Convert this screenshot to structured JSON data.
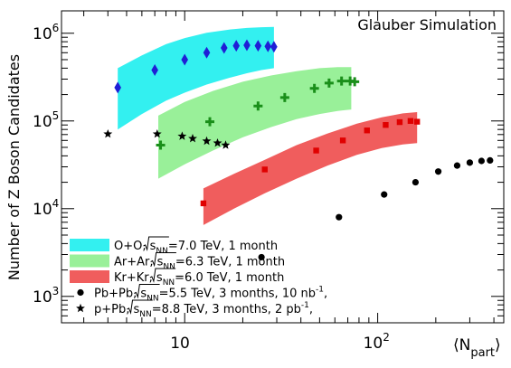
{
  "chart_data": {
    "type": "scatter",
    "title": "Glauber Simulation",
    "xlabel": "⟨N",
    "xlabel_sub": "part",
    "xlabel_close": "⟩",
    "ylabel": "Number of Z Boson Candidates",
    "x_scale": "log",
    "y_scale": "log",
    "xlim": [
      2.3,
      450
    ],
    "ylim": [
      500,
      1800000
    ],
    "x_ticks": [
      {
        "value": 10,
        "base": "10",
        "exp": ""
      },
      {
        "value": 100,
        "base": "10",
        "exp": "2"
      }
    ],
    "y_ticks": [
      {
        "value": 1000,
        "base": "10",
        "exp": "3"
      },
      {
        "value": 10000,
        "base": "10",
        "exp": "4"
      },
      {
        "value": 100000,
        "base": "10",
        "exp": "5"
      },
      {
        "value": 1000000,
        "base": "10",
        "exp": "6"
      }
    ],
    "grid": false,
    "legend_position": "bottom-left",
    "bands": [
      {
        "name": "O+O",
        "color": "#33f0f0",
        "legend": {
          "pre": "O+O,  ",
          "root_s": "s",
          "sub": "NN",
          "post": "=7.0 TeV,  1 month"
        },
        "x": [
          4.5,
          6,
          8,
          10,
          13,
          17,
          21,
          25,
          29
        ],
        "upper": [
          400000,
          560000,
          750000,
          880000,
          1010000,
          1100000,
          1150000,
          1170000,
          1180000
        ],
        "lower": [
          80000,
          120000,
          170000,
          210000,
          260000,
          310000,
          350000,
          380000,
          400000
        ]
      },
      {
        "name": "Ar+Ar",
        "color": "#99f099",
        "legend": {
          "pre": "Ar+Ar,  ",
          "root_s": "s",
          "sub": "NN",
          "post": "=6.3 TeV,  1 month"
        },
        "x": [
          7.3,
          10,
          14,
          20,
          28,
          38,
          50,
          62,
          73
        ],
        "upper": [
          115000,
          165000,
          220000,
          280000,
          330000,
          370000,
          400000,
          410000,
          410000
        ],
        "lower": [
          22000,
          32000,
          46000,
          65000,
          85000,
          105000,
          120000,
          130000,
          135000
        ]
      },
      {
        "name": "Kr+Kr",
        "color": "#f05d5d",
        "legend": {
          "pre": "Kr+Kr,  ",
          "root_s": "s",
          "sub": "NN",
          "post": "=6.0 TeV,  1 month"
        },
        "x": [
          12.5,
          18,
          26,
          38,
          55,
          78,
          105,
          135,
          160
        ],
        "upper": [
          17000,
          25000,
          36000,
          53000,
          72000,
          93000,
          110000,
          122000,
          126000
        ],
        "lower": [
          6500,
          10000,
          15000,
          22000,
          31000,
          41000,
          49000,
          54000,
          56000
        ]
      }
    ],
    "series": [
      {
        "name": "O+O",
        "marker": "diamond",
        "color": "#1f1fd6",
        "x": [
          4.5,
          7,
          10,
          13,
          16,
          18.5,
          21,
          24,
          27,
          29
        ],
        "y": [
          240000,
          380000,
          500000,
          600000,
          680000,
          720000,
          730000,
          720000,
          710000,
          700000
        ]
      },
      {
        "name": "Ar+Ar",
        "marker": "cross",
        "color": "#1a8f1a",
        "x": [
          7.5,
          13.5,
          24,
          33,
          47,
          56,
          65,
          72,
          76
        ],
        "y": [
          53000,
          98000,
          148000,
          185000,
          235000,
          270000,
          285000,
          285000,
          280000
        ]
      },
      {
        "name": "Kr+Kr",
        "marker": "square",
        "color": "#e00000",
        "x": [
          12.5,
          26,
          48,
          66,
          88,
          110,
          130,
          148,
          160
        ],
        "y": [
          11500,
          28000,
          46000,
          60000,
          78000,
          90000,
          97000,
          100000,
          98000
        ]
      },
      {
        "name": "Pb+Pb",
        "marker": "circle",
        "color": "#000000",
        "legend": {
          "pre": "Pb+Pb,  ",
          "root_s": "s",
          "sub": "NN",
          "post": "=5.5 TeV,  3 months, 10 nb",
          "sup": "-1",
          "tail": ","
        },
        "x": [
          25,
          63,
          108,
          157,
          206,
          258,
          300,
          345,
          382
        ],
        "y": [
          2800,
          8000,
          14500,
          20000,
          26500,
          31000,
          33500,
          35000,
          35500
        ]
      },
      {
        "name": "p+Pb",
        "marker": "star",
        "color": "#000000",
        "legend": {
          "pre": "p+Pb,  ",
          "root_s": "s",
          "sub": "NN",
          "post": "=8.8 TeV,  3 months,  2 pb",
          "sup": "-1",
          "tail": ","
        },
        "x": [
          4,
          7.2,
          9.7,
          11,
          13,
          14.8,
          16.3
        ],
        "y": [
          71000,
          71000,
          67000,
          63000,
          59000,
          56000,
          53000
        ]
      }
    ]
  }
}
